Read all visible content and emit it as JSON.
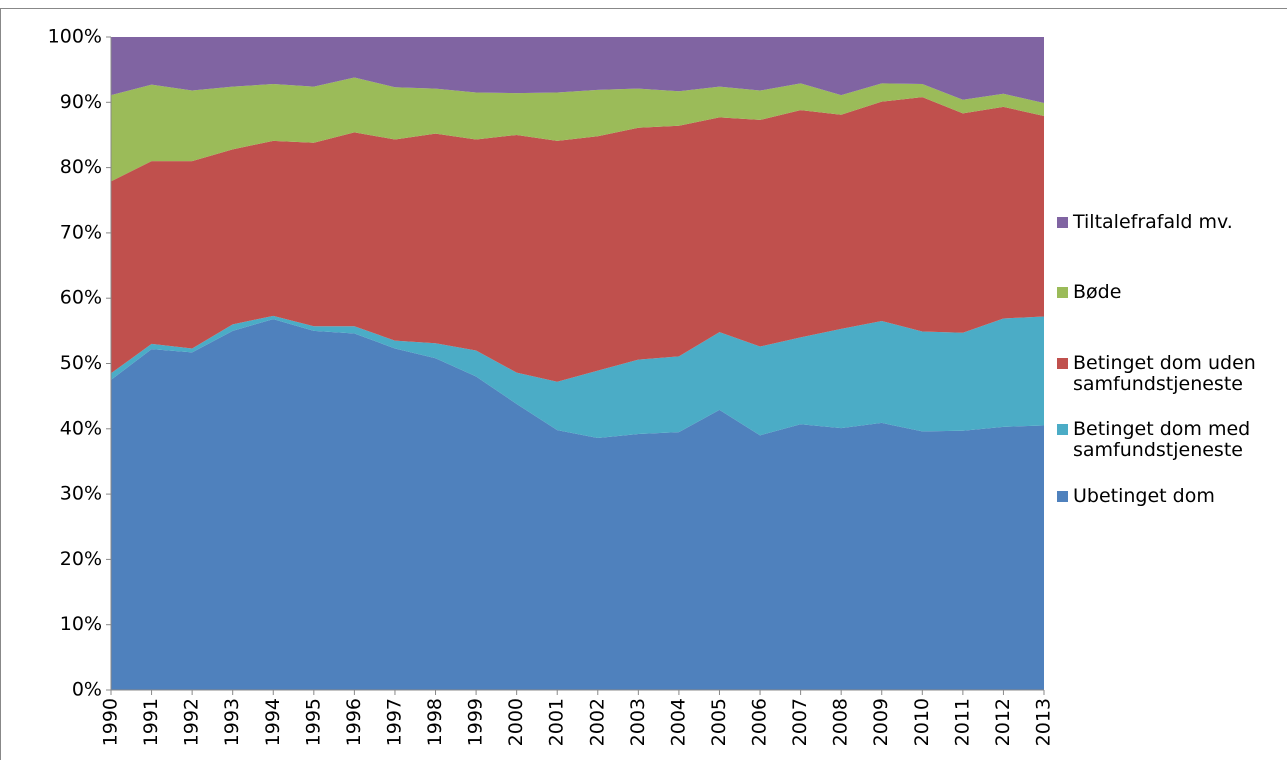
{
  "chart_data": {
    "type": "stacked_area",
    "categories": [
      "1990",
      "1991",
      "1992",
      "1993",
      "1994",
      "1995",
      "1996",
      "1997",
      "1998",
      "1999",
      "2000",
      "2001",
      "2002",
      "2003",
      "2004",
      "2005",
      "2006",
      "2007",
      "2008",
      "2009",
      "2010",
      "2011",
      "2012",
      "2013"
    ],
    "series": [
      {
        "name": "Ubetinget dom",
        "color": "#4f81bd",
        "values": [
          47.5,
          52.2,
          51.7,
          55,
          56.8,
          55,
          54.6,
          52.3,
          50.8,
          48,
          43.8,
          39.8,
          38.6,
          39.2,
          39.5,
          42.9,
          39,
          40.7,
          40.1,
          40.9,
          39.6,
          39.7,
          40.3,
          40.5
        ]
      },
      {
        "name": "Betinget dom med samfundstjeneste",
        "color": "#4bacc6",
        "values": [
          1.0,
          0.8,
          0.6,
          1.0,
          0.5,
          0.7,
          1.1,
          1.2,
          2.3,
          4.0,
          4.8,
          7.4,
          10.3,
          11.4,
          11.6,
          11.9,
          13.6,
          13.3,
          15.2,
          15.6,
          15.3,
          15.0,
          16.6,
          16.7
        ]
      },
      {
        "name": "Betinget dom uden samfundstjeneste",
        "color": "#c0504d",
        "values": [
          29.4,
          28.0,
          28.7,
          26.8,
          26.8,
          28.1,
          29.7,
          30.8,
          32.1,
          32.3,
          36.4,
          36.9,
          35.9,
          35.5,
          35.3,
          32.9,
          34.7,
          34.8,
          32.8,
          33.6,
          35.9,
          33.6,
          32.4,
          30.7
        ]
      },
      {
        "name": "Bøde",
        "color": "#9bbb59",
        "values": [
          13.2,
          11.7,
          10.8,
          9.6,
          8.7,
          8.6,
          8.4,
          8.0,
          6.9,
          7.2,
          6.4,
          7.4,
          7.1,
          6.0,
          5.3,
          4.7,
          4.5,
          4.1,
          3.0,
          2.8,
          2.0,
          2.1,
          2.0,
          2.0
        ]
      },
      {
        "name": "Tiltalefrafald mv.",
        "color": "#8064a2",
        "values": [
          8.9,
          7.3,
          8.2,
          7.6,
          7.2,
          7.6,
          6.2,
          7.7,
          7.9,
          8.5,
          8.6,
          8.5,
          8.1,
          7.9,
          8.3,
          7.6,
          8.2,
          7.1,
          8.9,
          7.1,
          7.2,
          9.6,
          8.7,
          10.1
        ]
      }
    ],
    "ylim": [
      0,
      100
    ],
    "yticks": [
      {
        "value": 0,
        "label": "0%"
      },
      {
        "value": 10,
        "label": "10%"
      },
      {
        "value": 20,
        "label": "20%"
      },
      {
        "value": 30,
        "label": "30%"
      },
      {
        "value": 40,
        "label": "40%"
      },
      {
        "value": 50,
        "label": "50%"
      },
      {
        "value": 60,
        "label": "60%"
      },
      {
        "value": 70,
        "label": "70%"
      },
      {
        "value": 80,
        "label": "80%"
      },
      {
        "value": 90,
        "label": "90%"
      },
      {
        "value": 100,
        "label": "100%"
      }
    ],
    "legend": "right"
  }
}
